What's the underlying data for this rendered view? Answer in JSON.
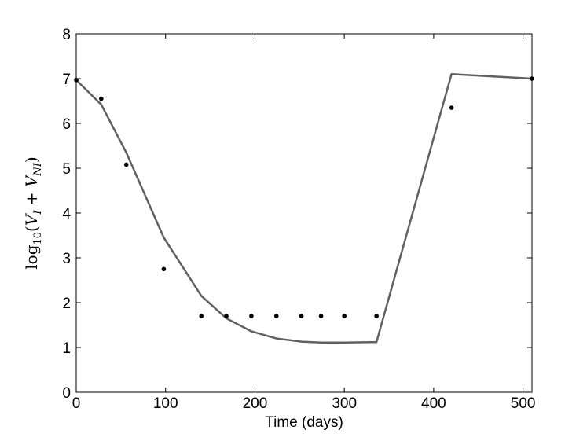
{
  "chart_data": {
    "type": "line",
    "title": "",
    "xlabel": "Time (days)",
    "ylabel": {
      "log": "log",
      "base": "10",
      "open": "(",
      "v1": "V",
      "sub1": "I",
      "plus": " + ",
      "v2": "V",
      "sub2": "NI",
      "close": ")"
    },
    "xlim": [
      0,
      510
    ],
    "ylim": [
      0,
      8
    ],
    "xticks": [
      "0",
      "100",
      "200",
      "300",
      "400",
      "500"
    ],
    "yticks": [
      "0",
      "1",
      "2",
      "3",
      "4",
      "5",
      "6",
      "7",
      "8"
    ],
    "grid": false,
    "legend": "none",
    "series": [
      {
        "kind": "line",
        "color": "#606060",
        "x": [
          0,
          28,
          56,
          98,
          140,
          168,
          196,
          224,
          252,
          274,
          300,
          336,
          420,
          510
        ],
        "y": [
          6.97,
          6.42,
          5.35,
          3.45,
          2.15,
          1.65,
          1.36,
          1.2,
          1.13,
          1.11,
          1.11,
          1.12,
          7.1,
          7.0
        ]
      },
      {
        "kind": "scatter",
        "color": "#000000",
        "x": [
          0,
          28,
          56,
          98,
          140,
          168,
          196,
          224,
          252,
          274,
          300,
          336,
          420,
          510
        ],
        "y": [
          6.97,
          6.55,
          5.08,
          2.75,
          1.7,
          1.7,
          1.7,
          1.7,
          1.7,
          1.7,
          1.7,
          1.7,
          6.35,
          7.0
        ]
      }
    ]
  }
}
